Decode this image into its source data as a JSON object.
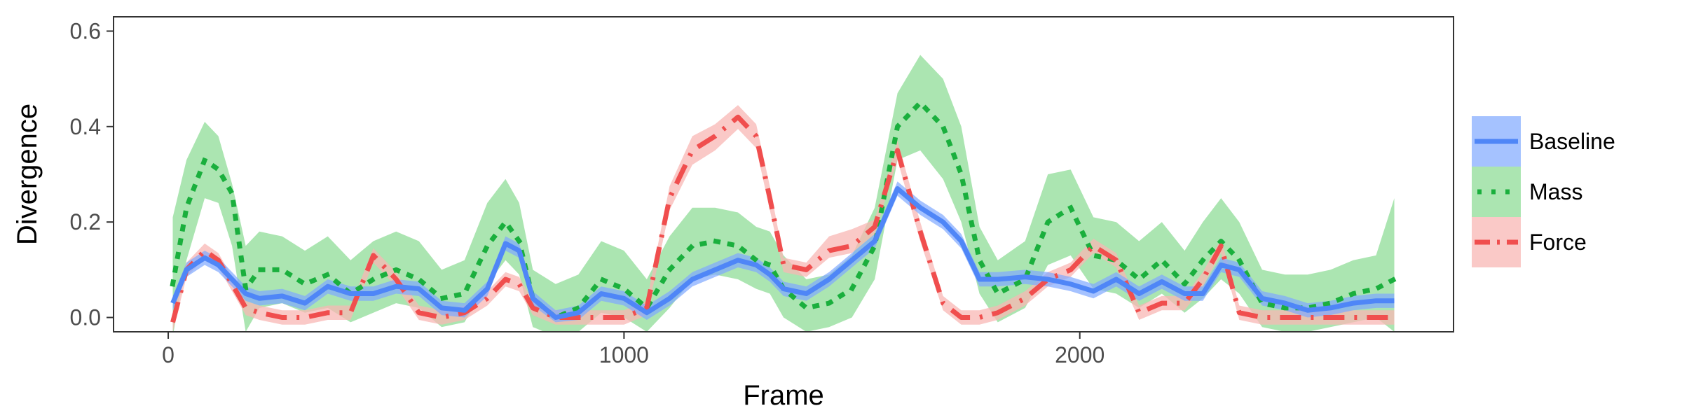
{
  "chart_data": {
    "type": "line",
    "title": "",
    "xlabel": "Frame",
    "ylabel": "Divergence",
    "xlim": [
      -120,
      2820
    ],
    "ylim": [
      -0.03,
      0.63
    ],
    "x_ticks": [
      0,
      1000,
      2000
    ],
    "x_tick_labels": [
      "0",
      "1000",
      "2000"
    ],
    "y_ticks": [
      0.0,
      0.2,
      0.4,
      0.6
    ],
    "y_tick_labels": [
      "0.0",
      "0.2",
      "0.4",
      "0.6"
    ],
    "grid": false,
    "legend_position": "right",
    "x": [
      10,
      40,
      80,
      110,
      140,
      170,
      200,
      250,
      300,
      350,
      400,
      450,
      500,
      550,
      600,
      650,
      700,
      740,
      770,
      800,
      850,
      900,
      950,
      1000,
      1050,
      1100,
      1150,
      1200,
      1250,
      1290,
      1320,
      1350,
      1400,
      1450,
      1500,
      1550,
      1600,
      1650,
      1700,
      1740,
      1780,
      1820,
      1880,
      1930,
      1980,
      2030,
      2080,
      2130,
      2180,
      2230,
      2270,
      2310,
      2350,
      2400,
      2450,
      2500,
      2550,
      2600,
      2650,
      2690
    ],
    "series": [
      {
        "name": "Baseline",
        "color": "#4f86f7",
        "dash": "solid",
        "values": [
          0.03,
          0.1,
          0.125,
          0.11,
          0.08,
          0.05,
          0.04,
          0.045,
          0.03,
          0.065,
          0.05,
          0.05,
          0.065,
          0.06,
          0.02,
          0.015,
          0.06,
          0.155,
          0.14,
          0.04,
          0.0,
          0.01,
          0.05,
          0.04,
          0.01,
          0.04,
          0.08,
          0.1,
          0.12,
          0.11,
          0.09,
          0.06,
          0.05,
          0.08,
          0.12,
          0.16,
          0.27,
          0.23,
          0.2,
          0.16,
          0.08,
          0.08,
          0.085,
          0.08,
          0.07,
          0.055,
          0.08,
          0.05,
          0.075,
          0.05,
          0.05,
          0.11,
          0.1,
          0.04,
          0.03,
          0.015,
          0.02,
          0.03,
          0.035,
          0.035
        ],
        "lower": [
          0.015,
          0.085,
          0.11,
          0.095,
          0.065,
          0.035,
          0.025,
          0.03,
          0.015,
          0.05,
          0.035,
          0.035,
          0.05,
          0.045,
          0.005,
          0.0,
          0.045,
          0.14,
          0.125,
          0.025,
          -0.01,
          -0.005,
          0.035,
          0.025,
          -0.005,
          0.025,
          0.065,
          0.085,
          0.105,
          0.095,
          0.075,
          0.045,
          0.035,
          0.065,
          0.105,
          0.145,
          0.255,
          0.215,
          0.185,
          0.145,
          0.065,
          0.065,
          0.07,
          0.065,
          0.055,
          0.04,
          0.065,
          0.035,
          0.06,
          0.035,
          0.035,
          0.095,
          0.085,
          0.025,
          0.015,
          0.0,
          0.005,
          0.015,
          0.02,
          0.02
        ],
        "upper": [
          0.045,
          0.115,
          0.14,
          0.125,
          0.095,
          0.065,
          0.055,
          0.06,
          0.045,
          0.08,
          0.065,
          0.065,
          0.08,
          0.075,
          0.035,
          0.03,
          0.075,
          0.17,
          0.155,
          0.055,
          0.015,
          0.025,
          0.065,
          0.055,
          0.025,
          0.055,
          0.095,
          0.115,
          0.135,
          0.125,
          0.105,
          0.075,
          0.065,
          0.095,
          0.135,
          0.175,
          0.285,
          0.245,
          0.215,
          0.175,
          0.095,
          0.095,
          0.1,
          0.095,
          0.085,
          0.07,
          0.095,
          0.065,
          0.09,
          0.065,
          0.065,
          0.125,
          0.115,
          0.055,
          0.045,
          0.03,
          0.035,
          0.045,
          0.05,
          0.05
        ]
      },
      {
        "name": "Mass",
        "color": "#1aaf3d",
        "fill": "#8fdc97",
        "dash": "dotted",
        "values": [
          0.07,
          0.23,
          0.33,
          0.31,
          0.26,
          0.06,
          0.1,
          0.1,
          0.07,
          0.09,
          0.05,
          0.08,
          0.1,
          0.08,
          0.04,
          0.05,
          0.15,
          0.2,
          0.16,
          0.04,
          0.0,
          0.02,
          0.08,
          0.06,
          0.02,
          0.1,
          0.15,
          0.16,
          0.15,
          0.12,
          0.11,
          0.06,
          0.02,
          0.03,
          0.06,
          0.15,
          0.4,
          0.45,
          0.4,
          0.3,
          0.12,
          0.05,
          0.08,
          0.2,
          0.23,
          0.13,
          0.12,
          0.08,
          0.12,
          0.07,
          0.12,
          0.16,
          0.12,
          0.03,
          0.02,
          0.02,
          0.03,
          0.05,
          0.06,
          0.08
        ],
        "lower": [
          -0.04,
          0.12,
          0.25,
          0.24,
          0.15,
          -0.03,
          0.02,
          0.03,
          0.01,
          0.02,
          -0.01,
          0.01,
          0.03,
          0.02,
          -0.02,
          -0.01,
          0.07,
          0.12,
          0.09,
          -0.02,
          -0.04,
          -0.03,
          0.01,
          0.0,
          -0.03,
          0.02,
          0.08,
          0.09,
          0.08,
          0.06,
          0.05,
          0.0,
          -0.03,
          -0.02,
          0.0,
          0.08,
          0.33,
          0.35,
          0.29,
          0.2,
          0.05,
          -0.01,
          0.02,
          0.11,
          0.13,
          0.06,
          0.05,
          0.02,
          0.05,
          0.01,
          0.04,
          0.08,
          0.05,
          -0.02,
          -0.03,
          -0.03,
          -0.02,
          -0.01,
          0.0,
          -0.03
        ],
        "upper": [
          0.21,
          0.33,
          0.41,
          0.38,
          0.28,
          0.15,
          0.18,
          0.17,
          0.14,
          0.17,
          0.12,
          0.16,
          0.18,
          0.16,
          0.1,
          0.12,
          0.24,
          0.29,
          0.24,
          0.1,
          0.07,
          0.09,
          0.16,
          0.14,
          0.08,
          0.17,
          0.23,
          0.23,
          0.22,
          0.19,
          0.18,
          0.13,
          0.08,
          0.09,
          0.13,
          0.23,
          0.47,
          0.55,
          0.5,
          0.4,
          0.19,
          0.12,
          0.16,
          0.3,
          0.31,
          0.21,
          0.2,
          0.16,
          0.2,
          0.14,
          0.2,
          0.25,
          0.2,
          0.1,
          0.09,
          0.09,
          0.1,
          0.12,
          0.13,
          0.25
        ]
      },
      {
        "name": "Force",
        "color": "#f04e4e",
        "fill": "#f8b7b4",
        "dash": "dashdot",
        "values": [
          -0.01,
          0.1,
          0.14,
          0.12,
          0.07,
          0.02,
          0.01,
          0.0,
          0.0,
          0.01,
          0.01,
          0.13,
          0.08,
          0.01,
          0.0,
          0.01,
          0.04,
          0.08,
          0.07,
          0.02,
          0.0,
          0.0,
          0.0,
          0.0,
          0.02,
          0.25,
          0.35,
          0.38,
          0.42,
          0.38,
          0.25,
          0.11,
          0.1,
          0.14,
          0.15,
          0.19,
          0.35,
          0.18,
          0.03,
          0.0,
          0.0,
          0.01,
          0.04,
          0.08,
          0.1,
          0.15,
          0.12,
          0.01,
          0.03,
          0.03,
          0.08,
          0.15,
          0.01,
          0.0,
          0.0,
          0.0,
          0.0,
          0.0,
          0.0,
          0.0
        ],
        "lower": [
          -0.03,
          0.085,
          0.125,
          0.105,
          0.055,
          0.005,
          -0.005,
          -0.015,
          -0.015,
          -0.005,
          -0.005,
          0.115,
          0.065,
          -0.005,
          -0.015,
          -0.005,
          0.025,
          0.065,
          0.055,
          0.005,
          -0.015,
          -0.015,
          -0.015,
          -0.015,
          0.005,
          0.225,
          0.32,
          0.35,
          0.395,
          0.355,
          0.225,
          0.095,
          0.085,
          0.125,
          0.135,
          0.175,
          0.33,
          0.16,
          0.015,
          -0.015,
          -0.015,
          -0.005,
          0.025,
          0.065,
          0.085,
          0.135,
          0.105,
          -0.005,
          0.015,
          0.015,
          0.065,
          0.135,
          -0.005,
          -0.015,
          -0.015,
          -0.015,
          -0.015,
          -0.015,
          -0.015,
          -0.015
        ],
        "upper": [
          0.01,
          0.115,
          0.155,
          0.135,
          0.085,
          0.035,
          0.025,
          0.015,
          0.015,
          0.025,
          0.025,
          0.145,
          0.095,
          0.025,
          0.015,
          0.025,
          0.055,
          0.095,
          0.085,
          0.035,
          0.015,
          0.015,
          0.015,
          0.015,
          0.035,
          0.275,
          0.38,
          0.405,
          0.445,
          0.405,
          0.275,
          0.125,
          0.115,
          0.17,
          0.185,
          0.205,
          0.37,
          0.2,
          0.045,
          0.015,
          0.015,
          0.025,
          0.055,
          0.095,
          0.115,
          0.165,
          0.135,
          0.025,
          0.045,
          0.045,
          0.095,
          0.165,
          0.025,
          0.015,
          0.015,
          0.015,
          0.015,
          0.015,
          0.015,
          0.015
        ]
      }
    ],
    "band_colors": {
      "Baseline": "#7fa8ff",
      "Mass": "#8fdc97",
      "Force": "#f8b7b4"
    }
  }
}
